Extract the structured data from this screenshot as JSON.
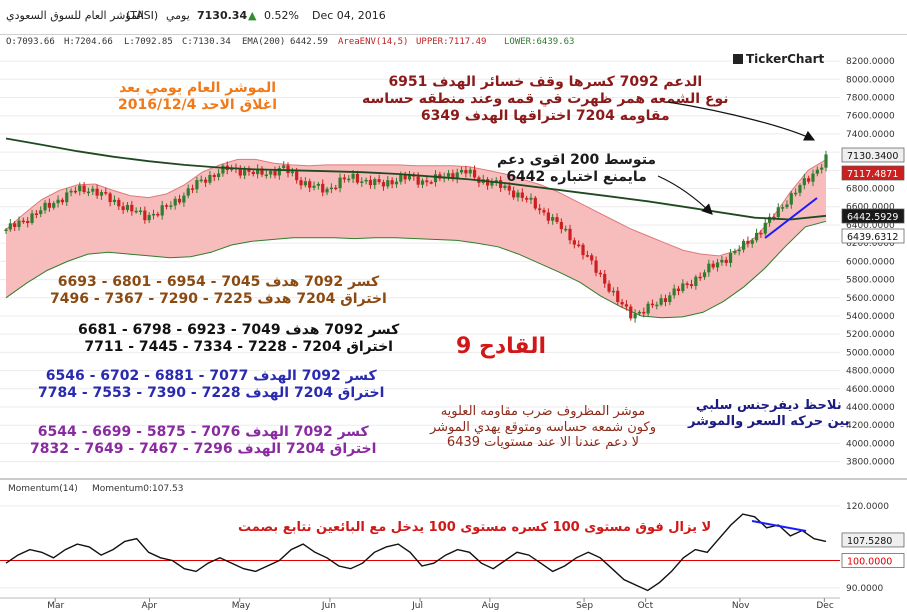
{
  "header": {
    "title": "المؤشر العام للسوق السعودي",
    "symbol": "(TASI)",
    "period": "يومي",
    "price": "7130.34",
    "change": "0.52%",
    "date": "Dec 04, 2016"
  },
  "ohlc": {
    "open": "O:7093.66",
    "high": "H:7204.66",
    "low": "L:7092.85",
    "close": "C:7130.34",
    "ema": "EMA(200)",
    "ema_value": "6442.59",
    "env": "AreaENV(14,5)",
    "upper": "UPPER:7117.49",
    "lower": "LOWER:6439.63"
  },
  "logo": "TickerChart",
  "colors": {
    "up": "#2f7d2f",
    "down": "#cc1f1f",
    "envelope_fill": "#f7bcbc",
    "envelope_line": "#2f7d2f",
    "ema": "#1f4a1f",
    "momentum": "#111111",
    "momentum_red": "#e00000",
    "trend_blue": "#1a1aff"
  },
  "annotations": {
    "a1": [
      "الموشر العام يومي بعد",
      "اغلاق الاحد 2016/12/4"
    ],
    "a2": [
      "الدعم 7092 كسرها وقف خسائر الهدف 6951",
      "نوع الشمعه همر ظهرت في قمه وعند منطقه حساسه",
      "مقاومه 7204 اختراقها الهدف 6349"
    ],
    "a3": [
      "متوسط 200 اقوى دعم",
      "مايمنع اختباره 6442"
    ],
    "a4": [
      "كسر 7092 هدف 7045 - 6954 - 6801 - 6693",
      "اختراق 7204 هدف 7225 - 7290 - 7367 - 7496"
    ],
    "a5": [
      "كسر 7092 هدف 7049 - 6923 - 6798 - 6681",
      "اختراق 7204 - 7228 - 7334 - 7445 - 7711"
    ],
    "a6": [
      "كسر 7092 الهدف 7077 - 6881 - 6702 - 6546",
      "اختراق 7204 الهدف 7228 - 7390 - 7553 - 7784"
    ],
    "a7": [
      "كسر 7092 الهدف 7076 - 5875 - 6699 - 6544",
      "اختراق 7204 الهدف 7296 - 7467 - 7649 - 7832"
    ],
    "a8": "القادح 9",
    "a9": [
      "موشر المظروف ضرب مقاومه العلويه",
      "وكون شمعه حساسه ومتوقع يهدي الموشر",
      "لا دعم عندنا الا عند مستويات 6439"
    ],
    "a10": [
      "نلاحظ ديفرجنس سلبي",
      "بين حركه السعر والموشر"
    ],
    "a11": "لا يزال فوق مستوى 100 كسره مستوى 100 يدخل مع البائعين نتابع بصمت"
  },
  "chart_data": [
    {
      "type": "candlestick",
      "title": "",
      "x_tick_labels": [
        "Mar",
        "Apr",
        "May",
        "Jun",
        "Jul",
        "Aug",
        "Sep",
        "Oct",
        "Nov",
        "Dec"
      ],
      "y_tick_labels": [
        "8200.0000",
        "8000.0000",
        "7800.0000",
        "7600.0000",
        "7400.0000",
        "7200.0000",
        "7000.0000",
        "6800.0000",
        "6600.0000",
        "6400.0000",
        "6200.0000",
        "6000.0000",
        "5800.0000",
        "5600.0000",
        "5400.0000",
        "5200.0000",
        "5000.0000",
        "4800.0000",
        "4600.0000",
        "4400.0000",
        "4200.0000",
        "4000.0000",
        "3800.0000"
      ],
      "ylim": [
        3620,
        8300
      ],
      "close_series": [
        6350,
        6420,
        6520,
        6600,
        6700,
        6780,
        6800,
        6720,
        6640,
        6560,
        6500,
        6540,
        6640,
        6760,
        6880,
        6960,
        7020,
        7000,
        6960,
        6980,
        7020,
        6900,
        6820,
        6780,
        6880,
        6920,
        6880,
        6840,
        6900,
        6920,
        6880,
        6900,
        6960,
        6990,
        6900,
        6860,
        6800,
        6720,
        6620,
        6500,
        6360,
        6200,
        6000,
        5800,
        5560,
        5420,
        5460,
        5560,
        5660,
        5740,
        5860,
        5960,
        6060,
        6160,
        6300,
        6460,
        6640,
        6800,
        6950,
        7130
      ],
      "ema200_series": [
        7350,
        7280,
        7210,
        7150,
        7100,
        7060,
        7030,
        7010,
        7000,
        6990,
        6980,
        6960,
        6930,
        6900,
        6860,
        6810,
        6760,
        6710,
        6660,
        6600,
        6540,
        6480,
        6460,
        6500
      ],
      "envelope_upper_series": [
        6350,
        6520,
        6680,
        6780,
        6840,
        6850,
        6780,
        6720,
        6700,
        6740,
        6840,
        6980,
        7060,
        7120,
        7120,
        7080,
        7060,
        7050,
        7060,
        7060,
        7060,
        7060,
        7060,
        7050,
        7050,
        7050,
        7040,
        7000,
        6960,
        6900,
        6840,
        6760,
        6660,
        6560,
        6460,
        6360,
        6280,
        6200,
        6120,
        6080,
        6060,
        6120,
        6260,
        6480,
        6760,
        7000,
        7118
      ],
      "envelope_lower_series": [
        5600,
        5760,
        5900,
        6000,
        6080,
        6100,
        6080,
        6060,
        6040,
        6050,
        6100,
        6180,
        6220,
        6240,
        6260,
        6260,
        6260,
        6250,
        6260,
        6260,
        6250,
        6240,
        6230,
        6200,
        6160,
        6080,
        5980,
        5880,
        5770,
        5620,
        5500,
        5400,
        5380,
        5390,
        5440,
        5560,
        5720,
        5920,
        6160,
        6380,
        6440
      ],
      "price_labels": [
        "7130.3400",
        "7117.4871",
        "6442.5929",
        "6439.6312"
      ]
    },
    {
      "type": "line",
      "title": "",
      "series": [
        {
          "name": "Momentum(14)",
          "last": "107.53"
        }
      ],
      "y_tick_labels": [
        "120.0000",
        "100.0000",
        "90.0000"
      ],
      "ylim": [
        87,
        124
      ],
      "reference_line": 100,
      "values": [
        99,
        102,
        104,
        103,
        101,
        104,
        106,
        105,
        102,
        104,
        107,
        108,
        103,
        101,
        100,
        97,
        96,
        99,
        101,
        99,
        97,
        96,
        98,
        100,
        104,
        106,
        103,
        101,
        98,
        97,
        99,
        103,
        105,
        106,
        103,
        98,
        99,
        102,
        104,
        103,
        99,
        97,
        100,
        103,
        102,
        99,
        96,
        98,
        101,
        103,
        101,
        97,
        93,
        91,
        89,
        92,
        96,
        101,
        104,
        103,
        108,
        113,
        117,
        116,
        112,
        113,
        109,
        111,
        108,
        107
      ],
      "price_labels": [
        "107.5280",
        "100.0000"
      ]
    }
  ]
}
